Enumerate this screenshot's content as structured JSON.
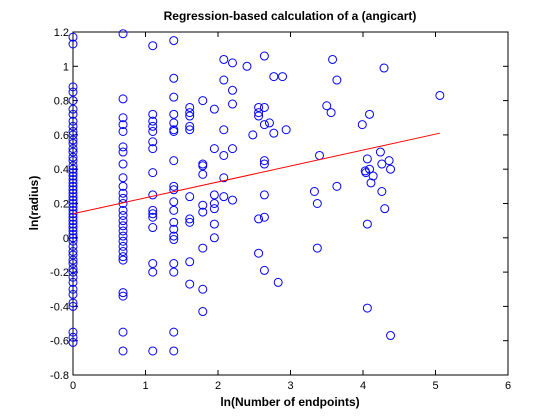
{
  "chart_data": {
    "type": "scatter",
    "title": "Regression-based calculation of a (angicart)",
    "xlabel": "ln(Number of endpoints)",
    "ylabel": "ln(radius)",
    "xlim": [
      0,
      6
    ],
    "ylim": [
      -0.8,
      1.2
    ],
    "xticks": [
      "0",
      "1",
      "2",
      "3",
      "4",
      "5",
      "6"
    ],
    "yticks": [
      "-0.8",
      "-0.6",
      "-0.4",
      "-0.2",
      "0",
      "0.2",
      "0.4",
      "0.6",
      "0.8",
      "1",
      "1.2"
    ],
    "grid": false,
    "marker_color": "#0000ff",
    "line_color": "#ff0000",
    "points": [
      [
        0,
        1.17
      ],
      [
        0,
        1.13
      ],
      [
        0,
        0.88
      ],
      [
        0,
        0.85
      ],
      [
        0,
        0.8
      ],
      [
        0,
        0.75
      ],
      [
        0,
        0.72
      ],
      [
        0,
        0.68
      ],
      [
        0,
        0.65
      ],
      [
        0,
        0.62
      ],
      [
        0,
        0.6
      ],
      [
        0,
        0.57
      ],
      [
        0,
        0.55
      ],
      [
        0,
        0.52
      ],
      [
        0,
        0.5
      ],
      [
        0,
        0.47
      ],
      [
        0,
        0.45
      ],
      [
        0,
        0.42
      ],
      [
        0,
        0.4
      ],
      [
        0,
        0.38
      ],
      [
        0,
        0.36
      ],
      [
        0,
        0.34
      ],
      [
        0,
        0.32
      ],
      [
        0,
        0.3
      ],
      [
        0,
        0.28
      ],
      [
        0,
        0.26
      ],
      [
        0,
        0.24
      ],
      [
        0,
        0.22
      ],
      [
        0,
        0.2
      ],
      [
        0,
        0.18
      ],
      [
        0,
        0.16
      ],
      [
        0,
        0.14
      ],
      [
        0,
        0.12
      ],
      [
        0,
        0.1
      ],
      [
        0,
        0.08
      ],
      [
        0,
        0.06
      ],
      [
        0,
        0.04
      ],
      [
        0,
        0.02
      ],
      [
        0,
        0
      ],
      [
        0,
        -0.02
      ],
      [
        0,
        -0.05
      ],
      [
        0,
        -0.08
      ],
      [
        0,
        -0.1
      ],
      [
        0,
        -0.13
      ],
      [
        0,
        -0.15
      ],
      [
        0,
        -0.18
      ],
      [
        0,
        -0.2
      ],
      [
        0,
        -0.23
      ],
      [
        0,
        -0.26
      ],
      [
        0,
        -0.3
      ],
      [
        0,
        -0.33
      ],
      [
        0,
        -0.38
      ],
      [
        0,
        -0.4
      ],
      [
        0,
        -0.55
      ],
      [
        0,
        -0.58
      ],
      [
        0,
        -0.61
      ],
      [
        0.69,
        1.19
      ],
      [
        0.69,
        0.81
      ],
      [
        0.69,
        0.7
      ],
      [
        0.69,
        0.66
      ],
      [
        0.69,
        0.62
      ],
      [
        0.69,
        0.53
      ],
      [
        0.69,
        0.5
      ],
      [
        0.69,
        0.43
      ],
      [
        0.69,
        0.35
      ],
      [
        0.69,
        0.3
      ],
      [
        0.69,
        0.26
      ],
      [
        0.69,
        0.23
      ],
      [
        0.69,
        0.2
      ],
      [
        0.69,
        0.16
      ],
      [
        0.69,
        0.13
      ],
      [
        0.69,
        0.1
      ],
      [
        0.69,
        0.07
      ],
      [
        0.69,
        0.04
      ],
      [
        0.69,
        0.01
      ],
      [
        0.69,
        -0.02
      ],
      [
        0.69,
        -0.05
      ],
      [
        0.69,
        -0.08
      ],
      [
        0.69,
        -0.11
      ],
      [
        0.69,
        -0.13
      ],
      [
        0.69,
        -0.32
      ],
      [
        0.69,
        -0.34
      ],
      [
        0.69,
        -0.55
      ],
      [
        0.69,
        -0.66
      ],
      [
        1.1,
        1.12
      ],
      [
        1.1,
        0.72
      ],
      [
        1.1,
        0.68
      ],
      [
        1.1,
        0.65
      ],
      [
        1.1,
        0.62
      ],
      [
        1.1,
        0.56
      ],
      [
        1.1,
        0.52
      ],
      [
        1.1,
        0.38
      ],
      [
        1.1,
        0.25
      ],
      [
        1.1,
        0.16
      ],
      [
        1.1,
        0.14
      ],
      [
        1.1,
        0.12
      ],
      [
        1.1,
        0.06
      ],
      [
        1.1,
        -0.15
      ],
      [
        1.1,
        -0.2
      ],
      [
        1.1,
        -0.66
      ],
      [
        1.39,
        1.15
      ],
      [
        1.39,
        0.93
      ],
      [
        1.39,
        0.82
      ],
      [
        1.39,
        0.72
      ],
      [
        1.39,
        0.67
      ],
      [
        1.39,
        0.63
      ],
      [
        1.39,
        0.62
      ],
      [
        1.39,
        0.45
      ],
      [
        1.39,
        0.3
      ],
      [
        1.39,
        0.28
      ],
      [
        1.39,
        0.21
      ],
      [
        1.39,
        0.16
      ],
      [
        1.39,
        0.09
      ],
      [
        1.39,
        0.05
      ],
      [
        1.39,
        0.01
      ],
      [
        1.39,
        -0.01
      ],
      [
        1.39,
        -0.15
      ],
      [
        1.39,
        -0.2
      ],
      [
        1.39,
        -0.55
      ],
      [
        1.39,
        -0.66
      ],
      [
        1.61,
        0.76
      ],
      [
        1.61,
        0.73
      ],
      [
        1.61,
        0.71
      ],
      [
        1.61,
        0.65
      ],
      [
        1.61,
        0.63
      ],
      [
        1.61,
        0.24
      ],
      [
        1.61,
        0.11
      ],
      [
        1.61,
        0.09
      ],
      [
        1.61,
        -0.14
      ],
      [
        1.61,
        -0.27
      ],
      [
        1.79,
        0.8
      ],
      [
        1.79,
        0.43
      ],
      [
        1.79,
        0.42
      ],
      [
        1.79,
        0.37
      ],
      [
        1.79,
        0.19
      ],
      [
        1.79,
        0.15
      ],
      [
        1.79,
        -0.06
      ],
      [
        1.79,
        -0.3
      ],
      [
        1.79,
        -0.43
      ],
      [
        1.95,
        0.75
      ],
      [
        1.95,
        0.52
      ],
      [
        1.95,
        0.25
      ],
      [
        1.95,
        0.2
      ],
      [
        1.95,
        0.17
      ],
      [
        1.95,
        0.08
      ],
      [
        1.95,
        0
      ],
      [
        2.08,
        1.04
      ],
      [
        2.08,
        0.92
      ],
      [
        2.08,
        0.63
      ],
      [
        2.08,
        0.48
      ],
      [
        2.08,
        0.35
      ],
      [
        2.08,
        0.24
      ],
      [
        2.2,
        1.02
      ],
      [
        2.2,
        0.86
      ],
      [
        2.2,
        0.78
      ],
      [
        2.2,
        0.52
      ],
      [
        2.2,
        0.22
      ],
      [
        2.4,
        1.0
      ],
      [
        2.48,
        0.6
      ],
      [
        2.56,
        0.76
      ],
      [
        2.56,
        0.73
      ],
      [
        2.56,
        0.71
      ],
      [
        2.56,
        0.11
      ],
      [
        2.56,
        -0.09
      ],
      [
        2.64,
        1.06
      ],
      [
        2.64,
        0.76
      ],
      [
        2.64,
        0.66
      ],
      [
        2.64,
        0.45
      ],
      [
        2.64,
        0.43
      ],
      [
        2.64,
        0.25
      ],
      [
        2.64,
        0.12
      ],
      [
        2.64,
        -0.19
      ],
      [
        2.71,
        0.67
      ],
      [
        2.77,
        0.94
      ],
      [
        2.77,
        0.61
      ],
      [
        2.83,
        -0.26
      ],
      [
        2.89,
        0.94
      ],
      [
        2.94,
        0.63
      ],
      [
        3.33,
        0.27
      ],
      [
        3.37,
        0.2
      ],
      [
        3.37,
        -0.06
      ],
      [
        3.4,
        0.48
      ],
      [
        3.5,
        0.77
      ],
      [
        3.56,
        0.73
      ],
      [
        3.58,
        1.04
      ],
      [
        3.64,
        0.92
      ],
      [
        3.64,
        0.3
      ],
      [
        3.99,
        0.66
      ],
      [
        4.03,
        0.39
      ],
      [
        4.04,
        0.38
      ],
      [
        4.06,
        0.46
      ],
      [
        4.06,
        0.08
      ],
      [
        4.06,
        -0.41
      ],
      [
        4.09,
        0.72
      ],
      [
        4.09,
        0.4
      ],
      [
        4.11,
        0.32
      ],
      [
        4.14,
        0.36
      ],
      [
        4.24,
        0.5
      ],
      [
        4.26,
        0.43
      ],
      [
        4.26,
        0.27
      ],
      [
        4.29,
        0.99
      ],
      [
        4.3,
        0.17
      ],
      [
        4.36,
        0.45
      ],
      [
        4.38,
        0.4
      ],
      [
        4.38,
        -0.57
      ],
      [
        5.06,
        0.83
      ]
    ],
    "regression_line": {
      "x": [
        0,
        5.06
      ],
      "y": [
        0.14,
        0.61
      ]
    }
  }
}
